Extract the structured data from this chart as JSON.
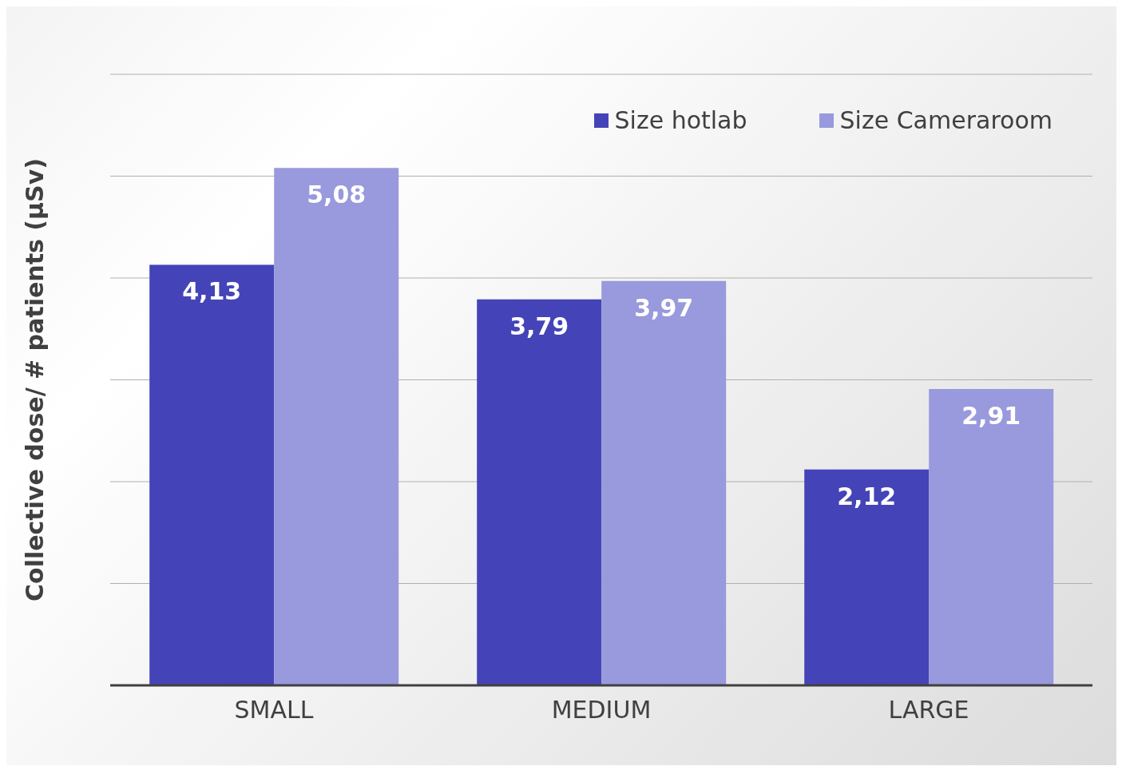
{
  "chart_data": {
    "type": "bar",
    "ylabel": "Collective dose/ # patients (µSv)",
    "categories": [
      "SMALL",
      "MEDIUM",
      "LARGE"
    ],
    "series": [
      {
        "name": "Size hotlab",
        "color": "#4444b8",
        "values": [
          4.13,
          3.79,
          2.12
        ],
        "value_labels": [
          "4,13",
          "3,79",
          "2,12"
        ]
      },
      {
        "name": "Size Cameraroom",
        "color": "#9999dd",
        "values": [
          5.08,
          3.97,
          2.91
        ],
        "value_labels": [
          "5,08",
          "3,97",
          "2,91"
        ]
      }
    ],
    "ylim": [
      0,
      6
    ],
    "yticks": [
      {
        "value": 0,
        "label": null
      },
      {
        "value": 1,
        "label": null
      },
      {
        "value": 2,
        "label": null
      },
      {
        "value": 3,
        "label": null
      },
      {
        "value": 4,
        "label": null
      },
      {
        "value": 5,
        "label": null
      },
      {
        "value": 6,
        "label": null
      }
    ],
    "grid": "y",
    "legend": "top right",
    "tick_labels": "x"
  }
}
